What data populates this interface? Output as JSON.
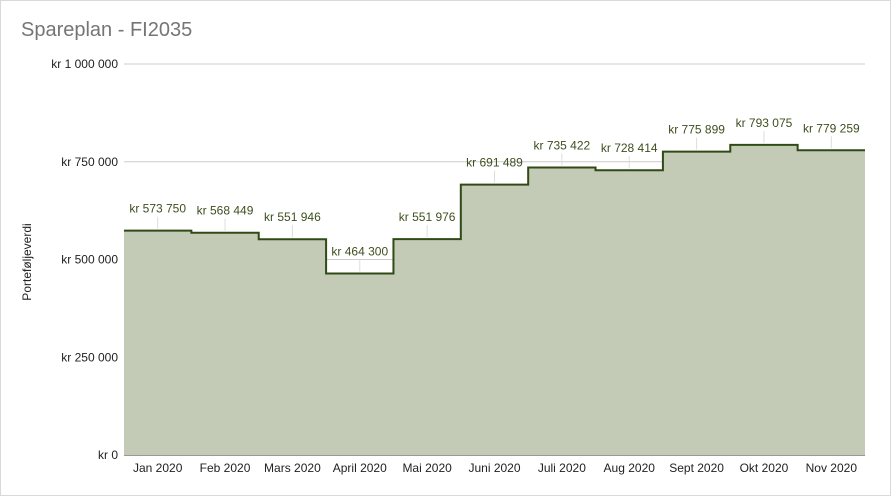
{
  "chart_data": {
    "type": "area",
    "step": true,
    "title": "Spareplan - FI2035",
    "xlabel": "",
    "ylabel": "Porteføljeverdi",
    "ylim": [
      0,
      1000000
    ],
    "grid": true,
    "y_ticks": [
      {
        "value": 0,
        "label": "kr   0"
      },
      {
        "value": 250000,
        "label": "kr  250 000"
      },
      {
        "value": 500000,
        "label": "kr  500 000"
      },
      {
        "value": 750000,
        "label": "kr  750 000"
      },
      {
        "value": 1000000,
        "label": "kr 1 000 000"
      }
    ],
    "categories": [
      "Jan 2020",
      "Feb 2020",
      "Mars 2020",
      "April 2020",
      "Mai 2020",
      "Juni 2020",
      "Juli 2020",
      "Aug 2020",
      "Sept 2020",
      "Okt 2020",
      "Nov 2020"
    ],
    "values": [
      573750,
      568449,
      551946,
      464300,
      551976,
      691489,
      735422,
      728414,
      775899,
      793075,
      779259
    ],
    "data_labels": [
      "kr  573 750",
      "kr  568 449",
      "kr  551 946",
      "kr  464 300",
      "kr  551 976",
      "kr  691 489",
      "kr  735 422",
      "kr  728 414",
      "kr  775 899",
      "kr  793 075",
      "kr  779 259"
    ],
    "colors": {
      "fill": "#c3cbb7",
      "line": "#2f4a14",
      "grid": "#cccccc",
      "label": "#3d4f1e"
    }
  }
}
